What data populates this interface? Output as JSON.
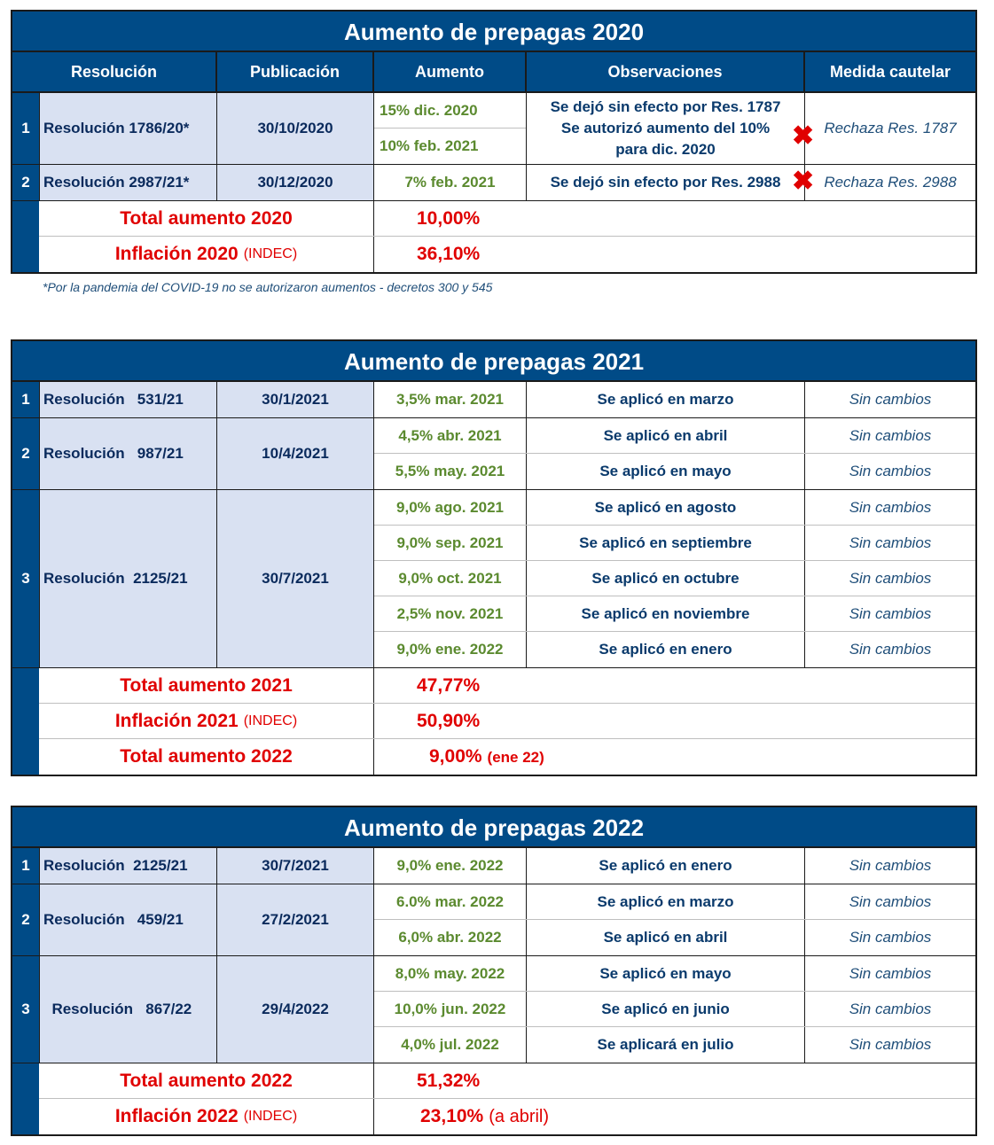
{
  "t2020": {
    "title": "Aumento de prepagas 2020",
    "headers": [
      "Resolución",
      "Publicación",
      "Aumento",
      "Observaciones",
      "Medida cautelar"
    ],
    "rows": [
      {
        "num": "1",
        "res": "Resolución 1786/20*",
        "pub": "30/10/2020",
        "aumentos": [
          "15% dic. 2020",
          "10% feb. 2021"
        ],
        "obs": [
          "Se dejó sin efecto por Res. 1787",
          "Se autorizó aumento del 10%",
          "para dic. 2020"
        ],
        "med": "Rechaza Res. 1787"
      },
      {
        "num": "2",
        "res": "Resolución 2987/21*",
        "pub": "30/12/2020",
        "aumentos": [
          "7% feb. 2021"
        ],
        "obs": [
          "Se dejó sin efecto por Res. 2988"
        ],
        "med": "Rechaza Res. 2988"
      }
    ],
    "total_label": "Total aumento 2020",
    "total_value": "10,00%",
    "infl_label": "Inflación 2020",
    "infl_src": "(INDEC)",
    "infl_value": "36,10%",
    "footnote": "*Por la pandemia del COVID-19 no se autorizaron aumentos - decretos 300 y 545"
  },
  "t2021": {
    "title": "Aumento de prepagas 2021",
    "groups": [
      {
        "num": "1",
        "res": "Resolución   531/21",
        "pub": "30/1/2021",
        "rows": [
          {
            "aum": "3,5% mar. 2021",
            "obs": "Se aplicó en marzo",
            "med": "Sin cambios"
          }
        ]
      },
      {
        "num": "2",
        "res": "Resolución   987/21",
        "pub": "10/4/2021",
        "rows": [
          {
            "aum": "4,5% abr. 2021",
            "obs": "Se aplicó en abril",
            "med": "Sin cambios"
          },
          {
            "aum": "5,5% may. 2021",
            "obs": "Se aplicó en mayo",
            "med": "Sin cambios"
          }
        ]
      },
      {
        "num": "3",
        "res": "Resolución  2125/21",
        "pub": "30/7/2021",
        "rows": [
          {
            "aum": "9,0% ago. 2021",
            "obs": "Se aplicó en agosto",
            "med": "Sin cambios"
          },
          {
            "aum": "9,0% sep. 2021",
            "obs": "Se aplicó en septiembre",
            "med": "Sin cambios"
          },
          {
            "aum": "9,0% oct. 2021",
            "obs": "Se aplicó en octubre",
            "med": "Sin cambios"
          },
          {
            "aum": "2,5% nov. 2021",
            "obs": "Se aplicó en noviembre",
            "med": "Sin cambios"
          },
          {
            "aum": "9,0% ene. 2022",
            "obs": "Se aplicó en enero",
            "med": "Sin cambios"
          }
        ]
      }
    ],
    "totals": [
      {
        "label": "Total aumento 2021",
        "src": "",
        "value": "47,77%",
        "note": ""
      },
      {
        "label": "Inflación 2021",
        "src": "(INDEC)",
        "value": "50,90%",
        "note": ""
      },
      {
        "label": "Total aumento 2022",
        "src": "",
        "value": "9,00%",
        "note": "(ene 22)"
      }
    ]
  },
  "t2022": {
    "title": "Aumento de prepagas 2022",
    "groups": [
      {
        "num": "1",
        "res": "Resolución  2125/21",
        "pub": "30/7/2021",
        "rows": [
          {
            "aum": "9,0% ene. 2022",
            "obs": "Se aplicó en enero",
            "med": "Sin cambios"
          }
        ]
      },
      {
        "num": "2",
        "res": "Resolución   459/21",
        "pub": "27/2/2021",
        "rows": [
          {
            "aum": "6.0% mar. 2022",
            "obs": "Se aplicó en marzo",
            "med": "Sin cambios"
          },
          {
            "aum": "6,0% abr. 2022",
            "obs": "Se aplicó en abril",
            "med": "Sin cambios"
          }
        ]
      },
      {
        "num": "3",
        "res": "  Resolución   867/22",
        "pub": "29/4/2022",
        "rows": [
          {
            "aum": "8,0% may. 2022",
            "obs": "Se aplicó en mayo",
            "med": "Sin cambios"
          },
          {
            "aum": "10,0% jun. 2022",
            "obs": "Se aplicó en junio",
            "med": "Sin cambios"
          },
          {
            "aum": "4,0% jul. 2022",
            "obs": "Se aplicará en julio",
            "med": "Sin cambios"
          }
        ]
      }
    ],
    "totals": [
      {
        "label": "Total aumento 2022",
        "src": "",
        "value": "51,32%",
        "note": ""
      },
      {
        "label": "Inflación 2022",
        "src": "(INDEC)",
        "value": "23,10%",
        "note": "(a abril)"
      }
    ]
  },
  "colors": {
    "header_blue": "#004b87",
    "light_blue": "#d9e1f2",
    "green": "#5b8a2f",
    "red": "#e00000"
  },
  "icons": {
    "reject": "x-mark-icon"
  }
}
